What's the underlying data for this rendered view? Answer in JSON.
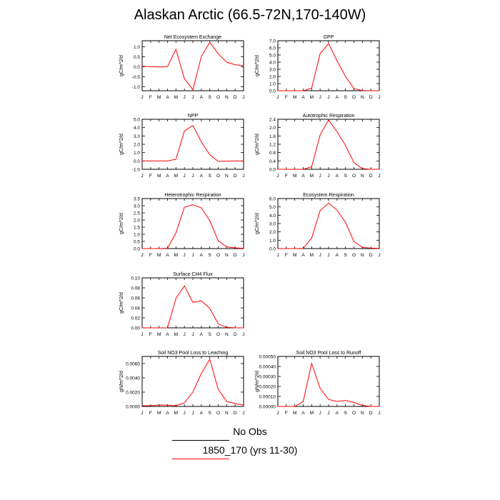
{
  "title": "Alaskan Arctic (66.5-72N,170-140W)",
  "months": [
    "J",
    "F",
    "M",
    "A",
    "M",
    "J",
    "J",
    "A",
    "S",
    "O",
    "N",
    "D",
    "J"
  ],
  "series_color": "#ff0000",
  "obs_color": "#000000",
  "legend": {
    "obs_label": "No Obs",
    "model_label": "1850_170 (yrs 11-30)"
  },
  "chart_data": [
    {
      "type": "line",
      "title": "Net Ecosystem Exchange",
      "ylabel": "gC/m^2/d",
      "ylim": [
        -1.2,
        1.3
      ],
      "yticks": [
        "-1.0",
        "-0.5",
        "0.0",
        "0.5",
        "1.0"
      ],
      "ytick_values": [
        -1.0,
        -0.5,
        0.0,
        0.5,
        1.0
      ],
      "x": [
        1,
        2,
        3,
        4,
        5,
        6,
        7,
        8,
        9,
        10,
        11,
        12,
        13
      ],
      "series": [
        {
          "values": [
            0.02,
            0.0,
            -0.01,
            0.0,
            0.87,
            -0.6,
            -1.15,
            0.5,
            1.22,
            0.65,
            0.23,
            0.1,
            0.05
          ]
        }
      ]
    },
    {
      "type": "line",
      "title": "GPP",
      "ylabel": "gC/m^2/d",
      "ylim": [
        0,
        7
      ],
      "yticks": [
        "0.0",
        "1.0",
        "2.0",
        "3.0",
        "4.0",
        "5.0",
        "6.0",
        "7.0"
      ],
      "ytick_values": [
        0,
        1,
        2,
        3,
        4,
        5,
        6,
        7
      ],
      "x": [
        1,
        2,
        3,
        4,
        5,
        6,
        7,
        8,
        9,
        10,
        11,
        12,
        13
      ],
      "series": [
        {
          "values": [
            0,
            0,
            0,
            0,
            0.35,
            5.2,
            6.6,
            4.2,
            2.0,
            0.3,
            0.02,
            0,
            0
          ]
        }
      ]
    },
    {
      "type": "line",
      "title": "NPP",
      "ylabel": "gC/m^2/d",
      "ylim": [
        -1,
        5
      ],
      "yticks": [
        "-1.0",
        "0.0",
        "1.0",
        "2.0",
        "3.0",
        "4.0",
        "5.0"
      ],
      "ytick_values": [
        -1,
        0,
        1,
        2,
        3,
        4,
        5
      ],
      "x": [
        1,
        2,
        3,
        4,
        5,
        6,
        7,
        8,
        9,
        10,
        11,
        12,
        13
      ],
      "series": [
        {
          "values": [
            0,
            0,
            0,
            0,
            0.2,
            3.6,
            4.25,
            2.3,
            0.75,
            -0.05,
            -0.02,
            0,
            0
          ]
        }
      ]
    },
    {
      "type": "line",
      "title": "Autotrophic Respiration",
      "ylabel": "gC/m^2/d",
      "ylim": [
        0,
        2.4
      ],
      "yticks": [
        "0.0",
        "0.4",
        "0.8",
        "1.2",
        "1.6",
        "2.0",
        "2.4"
      ],
      "ytick_values": [
        0,
        0.4,
        0.8,
        1.2,
        1.6,
        2.0,
        2.4
      ],
      "x": [
        1,
        2,
        3,
        4,
        5,
        6,
        7,
        8,
        9,
        10,
        11,
        12,
        13
      ],
      "series": [
        {
          "values": [
            0,
            0,
            0,
            0,
            0.12,
            1.65,
            2.37,
            1.8,
            1.15,
            0.32,
            0.03,
            0,
            0
          ]
        }
      ]
    },
    {
      "type": "line",
      "title": "Heterotrophic Respiration",
      "ylabel": "gC/m^2/d",
      "ylim": [
        0,
        3.5
      ],
      "yticks": [
        "0.0",
        "0.5",
        "1.0",
        "1.5",
        "2.0",
        "2.5",
        "3.0",
        "3.5"
      ],
      "ytick_values": [
        0,
        0.5,
        1,
        1.5,
        2,
        2.5,
        3,
        3.5
      ],
      "x": [
        1,
        2,
        3,
        4,
        5,
        6,
        7,
        8,
        9,
        10,
        11,
        12,
        13
      ],
      "series": [
        {
          "values": [
            0,
            0,
            0,
            0.02,
            1.1,
            2.9,
            3.07,
            2.85,
            1.95,
            0.55,
            0.12,
            0.05,
            0.02
          ]
        }
      ]
    },
    {
      "type": "line",
      "title": "Ecosystem Respiration",
      "ylabel": "gC/m^2/d",
      "ylim": [
        0,
        6
      ],
      "yticks": [
        "0.0",
        "1.0",
        "2.0",
        "3.0",
        "4.0",
        "5.0",
        "6.0"
      ],
      "ytick_values": [
        0,
        1,
        2,
        3,
        4,
        5,
        6
      ],
      "x": [
        1,
        2,
        3,
        4,
        5,
        6,
        7,
        8,
        9,
        10,
        11,
        12,
        13
      ],
      "series": [
        {
          "values": [
            0,
            0,
            0,
            0.02,
            1.25,
            4.55,
            5.45,
            4.6,
            3.15,
            0.85,
            0.15,
            0.05,
            0.02
          ]
        }
      ]
    },
    {
      "type": "line",
      "title": "Surface CH4 Flux",
      "ylabel": "gC/m^2/d",
      "ylim": [
        0,
        0.1
      ],
      "yticks": [
        "0.00",
        "0.02",
        "0.04",
        "0.06",
        "0.08",
        "0.10"
      ],
      "ytick_values": [
        0,
        0.02,
        0.04,
        0.06,
        0.08,
        0.1
      ],
      "x": [
        1,
        2,
        3,
        4,
        5,
        6,
        7,
        8,
        9,
        10,
        11,
        12,
        13
      ],
      "series": [
        {
          "values": [
            0,
            0,
            0,
            0,
            0.059,
            0.084,
            0.051,
            0.054,
            0.039,
            0.008,
            0.001,
            0,
            0
          ]
        }
      ]
    },
    {
      "type": "line",
      "title": "Soil NO3 Pool Loss to Leaching",
      "ylabel": "gN/m^2/d",
      "ylim": [
        0,
        0.007
      ],
      "yticks": [
        "0.0000",
        "0.0020",
        "0.0040",
        "0.0060"
      ],
      "ytick_values": [
        0,
        0.002,
        0.004,
        0.006
      ],
      "x": [
        1,
        2,
        3,
        4,
        5,
        6,
        7,
        8,
        9,
        10,
        11,
        12,
        13
      ],
      "series": [
        {
          "values": [
            0.0001,
            0.0001,
            0.0002,
            0.00018,
            0.0001,
            0.0005,
            0.002,
            0.0046,
            0.0066,
            0.0024,
            0.0007,
            0.0004,
            0.0002
          ]
        }
      ]
    },
    {
      "type": "line",
      "title": "Soil NO3 Pool Loss to Runoff",
      "ylabel": "gN/m^2/d",
      "ylim": [
        0,
        0.0005
      ],
      "yticks": [
        "0.00000",
        "0.00010",
        "0.00020",
        "0.00030",
        "0.00040",
        "0.00050"
      ],
      "ytick_values": [
        0,
        0.0001,
        0.0002,
        0.0003,
        0.0004,
        0.0005
      ],
      "x": [
        1,
        2,
        3,
        4,
        5,
        6,
        7,
        8,
        9,
        10,
        11,
        12,
        13
      ],
      "series": [
        {
          "values": [
            0,
            0,
            0,
            5e-05,
            0.00043,
            0.00018,
            7e-05,
            5e-05,
            6e-05,
            4e-05,
            1e-05,
            0,
            0
          ]
        }
      ]
    }
  ]
}
